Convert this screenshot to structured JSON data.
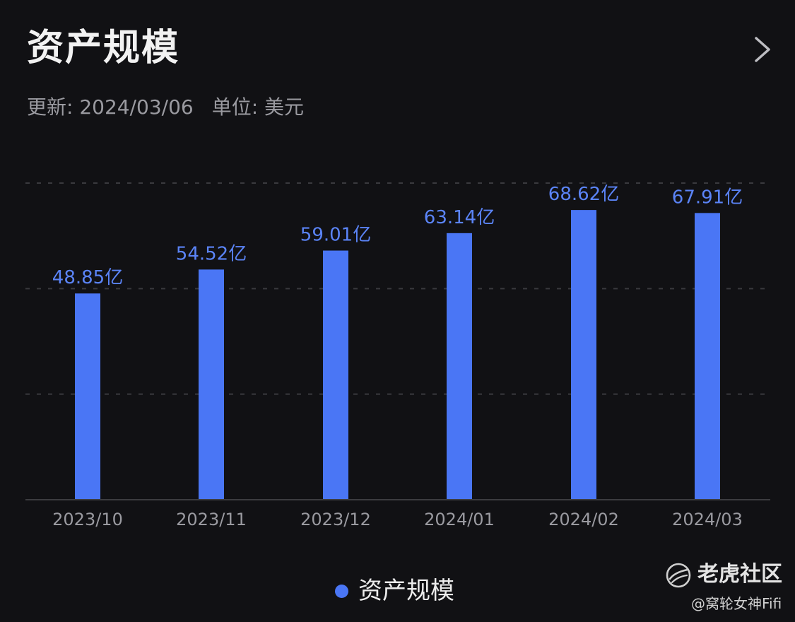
{
  "header": {
    "title": "资产规模",
    "update_text": "更新: 2024/03/06",
    "unit_text": "单位: 美元",
    "chevron_icon": "chevron-right-icon"
  },
  "chart_data": {
    "type": "bar",
    "categories": [
      "2023/10",
      "2023/11",
      "2023/12",
      "2024/01",
      "2024/02",
      "2024/03"
    ],
    "series": [
      {
        "name": "资产规模",
        "values": [
          48.85,
          54.52,
          59.01,
          63.14,
          68.62,
          67.91
        ],
        "labels": [
          "48.85亿",
          "54.52亿",
          "59.01亿",
          "63.14亿",
          "68.62亿",
          "67.91亿"
        ],
        "color": "#4a76f5"
      }
    ],
    "ylim": [
      0,
      75
    ],
    "y_gridlines": [
      25,
      50,
      75
    ],
    "grid": true,
    "legend_position": "bottom-center"
  },
  "legend": {
    "label": "资产规模"
  },
  "watermark": {
    "brand": "老虎社区",
    "credit": "@窝轮女神Fifi",
    "logo_icon": "tiger-logo-icon"
  },
  "colors": {
    "background": "#111114",
    "bar": "#4a76f5",
    "value_label": "#5b84f7",
    "grid": "#3a3a3e",
    "axis": "#3c3c40",
    "tick_label": "#9a9aa0"
  }
}
